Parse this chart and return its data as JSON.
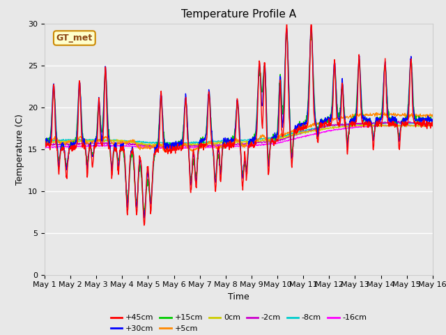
{
  "title": "Temperature Profile A",
  "xlabel": "Time",
  "ylabel": "Temperature (C)",
  "ylim": [
    0,
    30
  ],
  "xlim": [
    0,
    15
  ],
  "annotation": "GT_met",
  "series_labels": [
    "+45cm",
    "+30cm",
    "+15cm",
    "+5cm",
    "0cm",
    "-2cm",
    "-8cm",
    "-16cm"
  ],
  "series_colors": [
    "#ff0000",
    "#0000ff",
    "#00cc00",
    "#ff8800",
    "#cccc00",
    "#cc00cc",
    "#00cccc",
    "#ff00ff"
  ],
  "xtick_labels": [
    "May 1",
    "May 2",
    "May 3",
    "May 4",
    "May 5",
    "May 6",
    "May 7",
    "May 8",
    "May 9",
    "May 10",
    "May 11",
    "May 12",
    "May 13",
    "May 14",
    "May 15",
    "May 16"
  ],
  "background_color": "#e8e8e8",
  "grid_color": "#ffffff",
  "title_fontsize": 11,
  "axis_fontsize": 9,
  "tick_fontsize": 8
}
